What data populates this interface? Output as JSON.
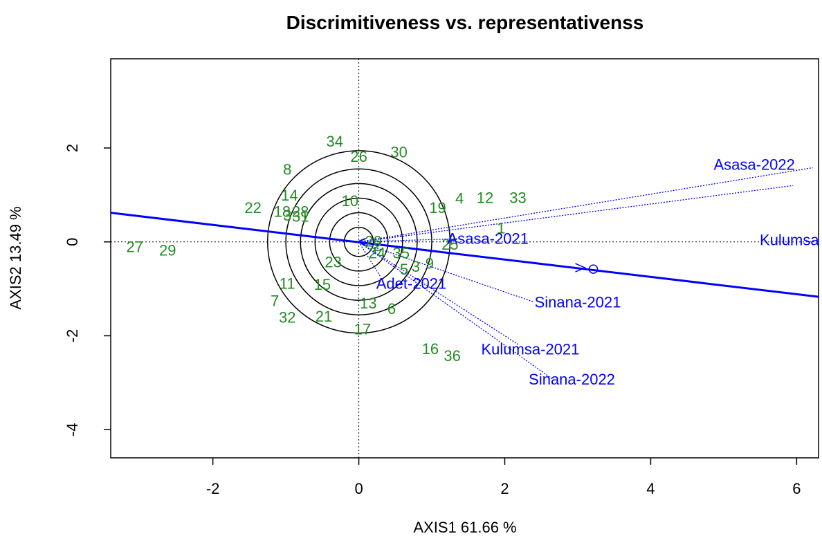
{
  "chart_data": {
    "type": "scatter",
    "title": "Discrimitiveness vs. representativenss",
    "xlabel": "AXIS1 61.66 %",
    "ylabel": "AXIS2 13.49 %",
    "xlim": [
      -3.4,
      6.3
    ],
    "ylim": [
      -4.6,
      3.9
    ],
    "x_ticks": [
      "-2",
      "0",
      "2",
      "4",
      "6"
    ],
    "y_ticks": [
      "-4",
      "-2",
      "0",
      "2"
    ],
    "colors": {
      "genotype": "#228B22",
      "environment": "#0000ff",
      "axis_line": "#0000ff",
      "circles": "#000000"
    },
    "genotypes": [
      {
        "label": "34",
        "x": -0.33,
        "y": 2.15
      },
      {
        "label": "26",
        "x": 0.0,
        "y": 1.82
      },
      {
        "label": "30",
        "x": 0.55,
        "y": 1.92
      },
      {
        "label": "8",
        "x": -0.98,
        "y": 1.55
      },
      {
        "label": "14",
        "x": -0.95,
        "y": 1.0
      },
      {
        "label": "10",
        "x": -0.12,
        "y": 0.88
      },
      {
        "label": "22",
        "x": -1.45,
        "y": 0.73
      },
      {
        "label": "18",
        "x": -1.05,
        "y": 0.65
      },
      {
        "label": "28",
        "x": -0.8,
        "y": 0.65
      },
      {
        "label": "3",
        "x": -0.98,
        "y": 0.57
      },
      {
        "label": "31",
        "x": -0.8,
        "y": 0.55
      },
      {
        "label": "19",
        "x": 1.08,
        "y": 0.73
      },
      {
        "label": "4",
        "x": 1.38,
        "y": 0.93
      },
      {
        "label": "12",
        "x": 1.73,
        "y": 0.95
      },
      {
        "label": "33",
        "x": 2.18,
        "y": 0.95
      },
      {
        "label": "1",
        "x": 1.95,
        "y": 0.3
      },
      {
        "label": "27",
        "x": -3.07,
        "y": -0.1
      },
      {
        "label": "29",
        "x": -2.62,
        "y": -0.17
      },
      {
        "label": "20",
        "x": 0.2,
        "y": 0.02
      },
      {
        "label": "2",
        "x": 0.25,
        "y": -0.08
      },
      {
        "label": "24",
        "x": 0.25,
        "y": -0.23
      },
      {
        "label": "35",
        "x": 0.58,
        "y": -0.23
      },
      {
        "label": "25",
        "x": 1.25,
        "y": -0.05
      },
      {
        "label": "23",
        "x": -0.35,
        "y": -0.42
      },
      {
        "label": "5",
        "x": 0.62,
        "y": -0.58
      },
      {
        "label": "3",
        "x": 0.78,
        "y": -0.52
      },
      {
        "label": "9",
        "x": 0.97,
        "y": -0.45
      },
      {
        "label": "11",
        "x": -0.98,
        "y": -0.88
      },
      {
        "label": "15",
        "x": -0.5,
        "y": -0.9
      },
      {
        "label": "7",
        "x": -1.15,
        "y": -1.25
      },
      {
        "label": "13",
        "x": 0.13,
        "y": -1.3
      },
      {
        "label": "6",
        "x": 0.45,
        "y": -1.42
      },
      {
        "label": "32",
        "x": -0.98,
        "y": -1.6
      },
      {
        "label": "21",
        "x": -0.48,
        "y": -1.58
      },
      {
        "label": "17",
        "x": 0.05,
        "y": -1.85
      },
      {
        "label": "16",
        "x": 0.98,
        "y": -2.27
      },
      {
        "label": "36",
        "x": 1.28,
        "y": -2.42
      }
    ],
    "environments": [
      {
        "label": "Asasa-2022",
        "x": 6.22,
        "y": 1.58,
        "lx": 5.42,
        "ly": 1.65
      },
      {
        "label": "Kulumsa",
        "x": 5.95,
        "y": 1.2,
        "lx": 5.9,
        "ly": 0.05
      },
      {
        "label": "Asasa-2021",
        "x": 1.4,
        "y": 0.07,
        "lx": 1.77,
        "ly": 0.08
      },
      {
        "label": "Adet-2021",
        "x": 0.3,
        "y": -0.75,
        "lx": 0.72,
        "ly": -0.88
      },
      {
        "label": "Sinana-2021",
        "x": 2.4,
        "y": -1.28,
        "lx": 3.0,
        "ly": -1.28
      },
      {
        "label": "Kulumsa-2021",
        "x": 2.2,
        "y": -2.2,
        "lx": 2.35,
        "ly": -2.28
      },
      {
        "label": "Sinana-2022",
        "x": 2.68,
        "y": -2.95,
        "lx": 2.92,
        "ly": -2.92
      }
    ],
    "ate_axis": {
      "from": [
        -3.4,
        0.62
      ],
      "to": [
        6.3,
        -1.17
      ],
      "arrow_at": [
        3.1,
        -0.55
      ]
    },
    "circle_radii": [
      0.2,
      0.4,
      0.6,
      0.8,
      1.0,
      1.25
    ]
  }
}
